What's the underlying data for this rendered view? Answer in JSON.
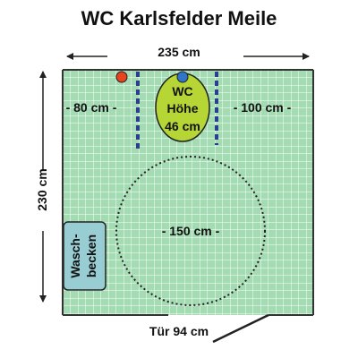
{
  "title": "WC Karlsfelder Meile",
  "dimensions": {
    "width": "235 cm",
    "height": "230 cm",
    "left_space": "- 80 cm -",
    "right_space": "- 100 cm -",
    "turning_circle": "- 150 cm -",
    "door": "Tür 94 cm"
  },
  "toilet": {
    "line1": "WC",
    "line2": "Höhe",
    "line3": "46 cm"
  },
  "sink": {
    "line1": "Wasch-",
    "line2": "becken"
  },
  "colors": {
    "floor": "#a3dbb2",
    "grid": "#ffffff",
    "wall": "#333333",
    "toilet": "#b5d635",
    "sink": "#99cdd4",
    "grab_bar": "#2b3e8f",
    "red_button": "#e8421f",
    "blue_button": "#2f76c9"
  }
}
